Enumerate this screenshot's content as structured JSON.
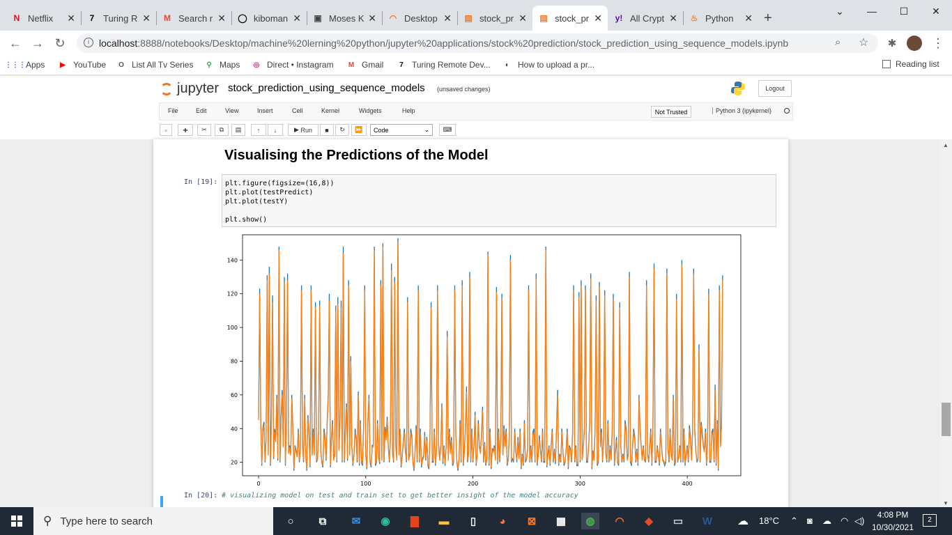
{
  "browser": {
    "tabs": [
      {
        "label": "Netflix",
        "icon": "N",
        "color": "#e50914"
      },
      {
        "label": "Turing R",
        "icon": "7",
        "color": "#000000"
      },
      {
        "label": "Search r",
        "icon": "M",
        "color": "#ea4335"
      },
      {
        "label": "kiboman",
        "icon": "◯",
        "color": "#000000"
      },
      {
        "label": "Moses K",
        "icon": "▣",
        "color": "#444444"
      },
      {
        "label": "Desktop",
        "icon": "◠",
        "color": "#f37626"
      },
      {
        "label": "stock_pr",
        "icon": "▤",
        "color": "#f37626"
      },
      {
        "label": "stock_pr",
        "icon": "▤",
        "color": "#f37626"
      },
      {
        "label": "All Crypt",
        "icon": "y!",
        "color": "#6001d2"
      },
      {
        "label": "Python",
        "icon": "♨",
        "color": "#f48024"
      }
    ],
    "new_tab": "+",
    "url_host": "localhost",
    "url_rest": ":8888/notebooks/Desktop/machine%20lerning%20python/jupyter%20applications/stock%20prediction/stock_prediction_using_sequence_models.ipynb",
    "bookmarks": [
      {
        "label": "Apps",
        "icon": "⋮⋮⋮",
        "color": "#1a73e8"
      },
      {
        "label": "YouTube",
        "icon": "▶",
        "color": "#ff0000"
      },
      {
        "label": "List All Tv Series",
        "icon": "O",
        "color": "#555555"
      },
      {
        "label": "Maps",
        "icon": "⚲",
        "color": "#34a853"
      },
      {
        "label": "Direct • Instagram",
        "icon": "◎",
        "color": "#c13584"
      },
      {
        "label": "Gmail",
        "icon": "M",
        "color": "#ea4335"
      },
      {
        "label": "Turing Remote Dev...",
        "icon": "7",
        "color": "#000000"
      },
      {
        "label": "How to upload a pr...",
        "icon": "◐",
        "color": "#333333"
      }
    ],
    "reading_list": "Reading list"
  },
  "jupyter": {
    "brand": "jupyter",
    "notebook_name": "stock_prediction_using_sequence_models",
    "save_status": "(unsaved changes)",
    "logout": "Logout",
    "menu": [
      "File",
      "Edit",
      "View",
      "Insert",
      "Cell",
      "Kernel",
      "Widgets",
      "Help"
    ],
    "trusted": "Not Trusted",
    "kernel": "Python 3 (ipykernel)",
    "run_label": "Run",
    "cell_type": "Code"
  },
  "notebook": {
    "heading": "Visualising the Predictions of the Model",
    "prompt": "In [19]:",
    "code": [
      "plt.figure(figsize=(16,8))",
      "plt.plot(testPredict)",
      "plt.plot(testY)",
      "",
      "plt.show()"
    ],
    "next_prompt": "In [20]:",
    "next_code": "# visualizing model on test and train set to get better insight of the model accuracy"
  },
  "chart_data": {
    "type": "line",
    "xlim": [
      -15,
      450
    ],
    "ylim": [
      12,
      155
    ],
    "xticks": [
      0,
      100,
      200,
      300,
      400
    ],
    "yticks": [
      20,
      40,
      60,
      80,
      100,
      120,
      140
    ],
    "series": [
      {
        "name": "",
        "color": "#1f77b4",
        "values": [
          48,
          123,
          45,
          18,
          40,
          44,
          20,
          35,
          131,
          25,
          136,
          18,
          45,
          119,
          22,
          40,
          34,
          60,
          21,
          148,
          20,
          48,
          63,
          30,
          130,
          18,
          45,
          132,
          26,
          30,
          25,
          60,
          40,
          15,
          30,
          27,
          24,
          40,
          20,
          28,
          125,
          30,
          20,
          60,
          24,
          15,
          48,
          38,
          17,
          125,
          25,
          40,
          25,
          115,
          20,
          22,
          40,
          116,
          27,
          20,
          17,
          40,
          35,
          21,
          45,
          60,
          120,
          17,
          35,
          45,
          22,
          25,
          113,
          20,
          118,
          28,
          45,
          116,
          20,
          148,
          20,
          40,
          55,
          21,
          128,
          25,
          83,
          30,
          18,
          25,
          40,
          35,
          20,
          62,
          18,
          45,
          20,
          18,
          43,
          125,
          25,
          16,
          45,
          60,
          20,
          17,
          30,
          30,
          148,
          18,
          20,
          45,
          23,
          19,
          128,
          22,
          150,
          20,
          41,
          35,
          47,
          30,
          20,
          35,
          138,
          25,
          20,
          130,
          30,
          22,
          153,
          25,
          40,
          17,
          24,
          32,
          40,
          27,
          20,
          118,
          22,
          25,
          40,
          36,
          20,
          15,
          27,
          42,
          20,
          125,
          20,
          40,
          17,
          22,
          24,
          38,
          21,
          35,
          18,
          16,
          40,
          115,
          20,
          20,
          40,
          18,
          27,
          125,
          30,
          22,
          30,
          55,
          19,
          30,
          18,
          30,
          98,
          22,
          40,
          26,
          35,
          18,
          20,
          125,
          38,
          20,
          15,
          22,
          45,
          20,
          128,
          18,
          27,
          40,
          65,
          20,
          26,
          133,
          20,
          40,
          20,
          30,
          50,
          18,
          25,
          45,
          30,
          26,
          37,
          53,
          20,
          32,
          18,
          22,
          145,
          18,
          40,
          16,
          28,
          27,
          30,
          22,
          124,
          19,
          40,
          20,
          35,
          120,
          25,
          42,
          30,
          40,
          18,
          22,
          38,
          143,
          20,
          22,
          20,
          40,
          27,
          20,
          35,
          23,
          40,
          16,
          25,
          18,
          45,
          20,
          22,
          28,
          125,
          20,
          30,
          20,
          38,
          40,
          20,
          132,
          18,
          25,
          36,
          27,
          20,
          40,
          20,
          20,
          148,
          17,
          25,
          30,
          18,
          30,
          40,
          20,
          28,
          19,
          40,
          63,
          18,
          25,
          20,
          40,
          26,
          18,
          20,
          28,
          40,
          16,
          30,
          28,
          20,
          38,
          125,
          20,
          30,
          18,
          18,
          121,
          20,
          128,
          22,
          30,
          40,
          125,
          20,
          20,
          30,
          45,
          132,
          16,
          27,
          22,
          40,
          119,
          18,
          20,
          127,
          30,
          40,
          20,
          35,
          122,
          25,
          20,
          45,
          20,
          30,
          22,
          40,
          120,
          18,
          27,
          35,
          20,
          18,
          115,
          30,
          20,
          25,
          20,
          45,
          40,
          22,
          25,
          133,
          20,
          18,
          30,
          40,
          35,
          20,
          28,
          18,
          60,
          40,
          30,
          22,
          30,
          22,
          20,
          128,
          25,
          20,
          30,
          40,
          18,
          42,
          138,
          20,
          20,
          30,
          25,
          18,
          40,
          30,
          22,
          20,
          18,
          20,
          135,
          28,
          20,
          40,
          25,
          22,
          60,
          18,
          20,
          120,
          20,
          23,
          30,
          20,
          140,
          20,
          40,
          18,
          25,
          30,
          20,
          42,
          35,
          22,
          40,
          135,
          40,
          27,
          20,
          22,
          90,
          20,
          44,
          38,
          30,
          27,
          40,
          18,
          34,
          123,
          20,
          20,
          38,
          40,
          20,
          66,
          18,
          45,
          15,
          125,
          30,
          43,
          131
        ]
      },
      {
        "name": "",
        "color": "#ff7f0e",
        "values": [
          45,
          120,
          43,
          19,
          38,
          42,
          21,
          33,
          128,
          24,
          132,
          19,
          43,
          115,
          23,
          38,
          32,
          58,
          22,
          146,
          21,
          46,
          60,
          29,
          127,
          19,
          43,
          128,
          25,
          29,
          24,
          58,
          38,
          16,
          29,
          26,
          23,
          38,
          21,
          27,
          122,
          29,
          21,
          58,
          23,
          16,
          46,
          36,
          18,
          122,
          24,
          38,
          24,
          112,
          21,
          21,
          38,
          113,
          26,
          21,
          18,
          38,
          33,
          22,
          43,
          58,
          116,
          18,
          33,
          43,
          21,
          24,
          110,
          21,
          114,
          27,
          43,
          112,
          21,
          144,
          21,
          38,
          53,
          22,
          125,
          24,
          80,
          29,
          19,
          24,
          38,
          33,
          21,
          60,
          19,
          43,
          21,
          19,
          41,
          122,
          24,
          17,
          43,
          58,
          21,
          18,
          29,
          29,
          146,
          19,
          21,
          43,
          22,
          20,
          125,
          21,
          148,
          21,
          39,
          33,
          45,
          29,
          21,
          33,
          134,
          24,
          21,
          127,
          29,
          21,
          151,
          24,
          38,
          18,
          23,
          31,
          38,
          26,
          21,
          115,
          21,
          24,
          38,
          34,
          21,
          16,
          26,
          40,
          21,
          122,
          21,
          38,
          18,
          21,
          23,
          36,
          22,
          33,
          19,
          17,
          38,
          112,
          21,
          21,
          38,
          19,
          26,
          122,
          29,
          21,
          29,
          53,
          20,
          29,
          19,
          29,
          95,
          21,
          38,
          25,
          33,
          19,
          21,
          122,
          36,
          21,
          16,
          21,
          43,
          21,
          125,
          19,
          26,
          38,
          62,
          21,
          25,
          130,
          21,
          38,
          21,
          29,
          48,
          19,
          24,
          43,
          29,
          25,
          35,
          51,
          21,
          31,
          19,
          21,
          143,
          19,
          38,
          17,
          27,
          26,
          29,
          21,
          121,
          20,
          38,
          21,
          33,
          117,
          24,
          40,
          29,
          38,
          19,
          21,
          36,
          140,
          21,
          21,
          21,
          38,
          26,
          21,
          33,
          22,
          38,
          17,
          24,
          19,
          43,
          21,
          21,
          27,
          122,
          21,
          29,
          21,
          36,
          38,
          21,
          129,
          19,
          24,
          34,
          26,
          21,
          38,
          21,
          21,
          146,
          18,
          24,
          29,
          19,
          29,
          38,
          21,
          27,
          20,
          38,
          60,
          19,
          24,
          21,
          38,
          25,
          19,
          21,
          27,
          38,
          17,
          29,
          27,
          21,
          36,
          122,
          21,
          29,
          19,
          19,
          118,
          21,
          125,
          21,
          29,
          38,
          122,
          21,
          21,
          29,
          43,
          129,
          17,
          26,
          21,
          38,
          116,
          19,
          21,
          124,
          29,
          38,
          21,
          33,
          119,
          24,
          21,
          43,
          21,
          29,
          21,
          38,
          117,
          19,
          26,
          33,
          21,
          19,
          112,
          29,
          21,
          24,
          21,
          43,
          38,
          21,
          24,
          130,
          21,
          19,
          29,
          38,
          33,
          21,
          27,
          19,
          58,
          38,
          29,
          21,
          29,
          21,
          21,
          125,
          24,
          21,
          29,
          38,
          19,
          40,
          135,
          21,
          21,
          29,
          24,
          19,
          38,
          29,
          21,
          21,
          19,
          21,
          132,
          27,
          21,
          38,
          24,
          21,
          58,
          19,
          21,
          117,
          21,
          22,
          29,
          21,
          137,
          21,
          38,
          19,
          24,
          29,
          21,
          40,
          33,
          21,
          38,
          132,
          38,
          26,
          21,
          21,
          87,
          21,
          42,
          36,
          29,
          26,
          38,
          19,
          32,
          120,
          21,
          21,
          36,
          38,
          21,
          63,
          19,
          43,
          16,
          122,
          29,
          41,
          128
        ]
      }
    ]
  },
  "taskbar": {
    "search_placeholder": "Type here to search",
    "weather": "18°C",
    "time": "4:08 PM",
    "date": "10/30/2021",
    "notifications": "2"
  }
}
